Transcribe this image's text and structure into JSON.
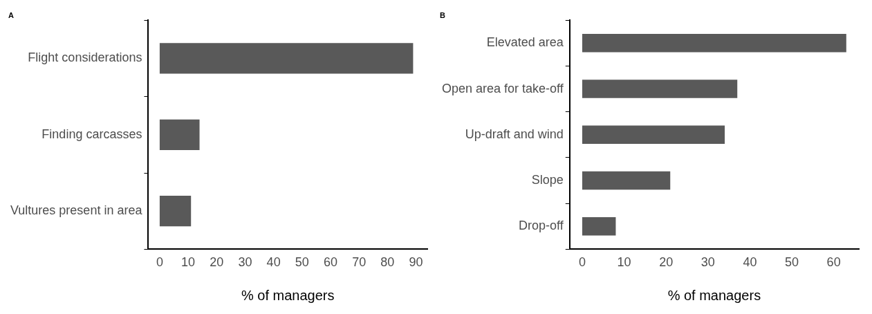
{
  "chart_data": [
    {
      "type": "bar",
      "title": "A",
      "orientation": "horizontal",
      "categories": [
        "Flight considerations",
        "Finding carcasses",
        "Vultures present in area"
      ],
      "values": [
        89,
        14,
        11
      ],
      "color": "#595959",
      "xlabel": "% of managers",
      "xlim": [
        -4,
        94
      ],
      "xticks": [
        0,
        10,
        20,
        30,
        40,
        50,
        60,
        70,
        80,
        90
      ],
      "grid": false,
      "legend": false
    },
    {
      "type": "bar",
      "title": "B",
      "orientation": "horizontal",
      "categories": [
        "Elevated area",
        "Open area for take-off",
        "Up-draft and wind",
        "Slope",
        "Drop-off"
      ],
      "values": [
        63,
        37,
        34,
        21,
        8
      ],
      "color": "#595959",
      "xlabel": "% of managers",
      "xlim": [
        -3,
        66
      ],
      "xticks": [
        0,
        10,
        20,
        30,
        40,
        50,
        60
      ],
      "grid": false,
      "legend": false
    }
  ]
}
